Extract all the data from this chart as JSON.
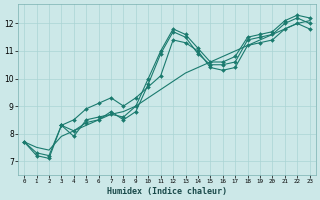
{
  "xlabel": "Humidex (Indice chaleur)",
  "bg_color": "#cce8e8",
  "line_color": "#1a7a6e",
  "xlim": [
    -0.5,
    23.5
  ],
  "ylim": [
    6.5,
    12.7
  ],
  "xticks": [
    0,
    1,
    2,
    3,
    4,
    5,
    6,
    7,
    8,
    9,
    10,
    11,
    12,
    13,
    14,
    15,
    16,
    17,
    18,
    19,
    20,
    21,
    22,
    23
  ],
  "yticks": [
    7,
    8,
    9,
    10,
    11,
    12
  ],
  "series": [
    {
      "x": [
        0,
        1,
        2,
        3,
        4,
        5,
        6,
        7,
        8,
        9,
        10,
        11,
        12,
        13,
        14,
        15,
        16,
        17,
        18,
        19,
        20,
        21,
        22,
        23
      ],
      "y": [
        7.7,
        7.2,
        7.1,
        8.3,
        7.9,
        8.5,
        8.6,
        8.7,
        8.6,
        9.0,
        10.0,
        11.0,
        11.8,
        11.6,
        11.1,
        10.6,
        10.6,
        10.8,
        11.5,
        11.6,
        11.7,
        12.1,
        12.3,
        12.2
      ]
    },
    {
      "x": [
        0,
        1,
        2,
        3,
        4,
        5,
        6,
        7,
        8,
        9,
        10,
        11,
        12,
        13,
        14,
        15,
        16,
        17,
        18,
        19,
        20,
        21,
        22,
        23
      ],
      "y": [
        7.7,
        7.3,
        7.2,
        8.3,
        8.1,
        8.4,
        8.5,
        8.8,
        8.5,
        8.8,
        9.8,
        10.9,
        11.7,
        11.5,
        10.9,
        10.5,
        10.5,
        10.6,
        11.4,
        11.5,
        11.6,
        12.0,
        12.2,
        12.0
      ]
    },
    {
      "x": [
        3,
        4,
        5,
        6,
        7,
        8,
        9,
        10,
        11,
        12,
        13,
        14,
        15,
        16,
        17,
        18,
        19,
        20,
        21,
        22,
        23
      ],
      "y": [
        8.3,
        8.5,
        8.9,
        9.1,
        9.3,
        9.0,
        9.3,
        9.7,
        10.1,
        11.4,
        11.3,
        11.0,
        10.4,
        10.3,
        10.4,
        11.2,
        11.3,
        11.4,
        11.8,
        12.0,
        11.8
      ]
    },
    {
      "x": [
        0,
        1,
        2,
        3,
        4,
        5,
        6,
        7,
        8,
        9,
        10,
        11,
        12,
        13,
        14,
        15,
        16,
        17,
        18,
        19,
        20,
        21,
        22,
        23
      ],
      "y": [
        7.7,
        7.5,
        7.4,
        7.9,
        8.1,
        8.3,
        8.5,
        8.7,
        8.8,
        9.0,
        9.3,
        9.6,
        9.9,
        10.2,
        10.4,
        10.6,
        10.8,
        11.0,
        11.2,
        11.4,
        11.6,
        11.8,
        12.0,
        12.1
      ]
    }
  ]
}
